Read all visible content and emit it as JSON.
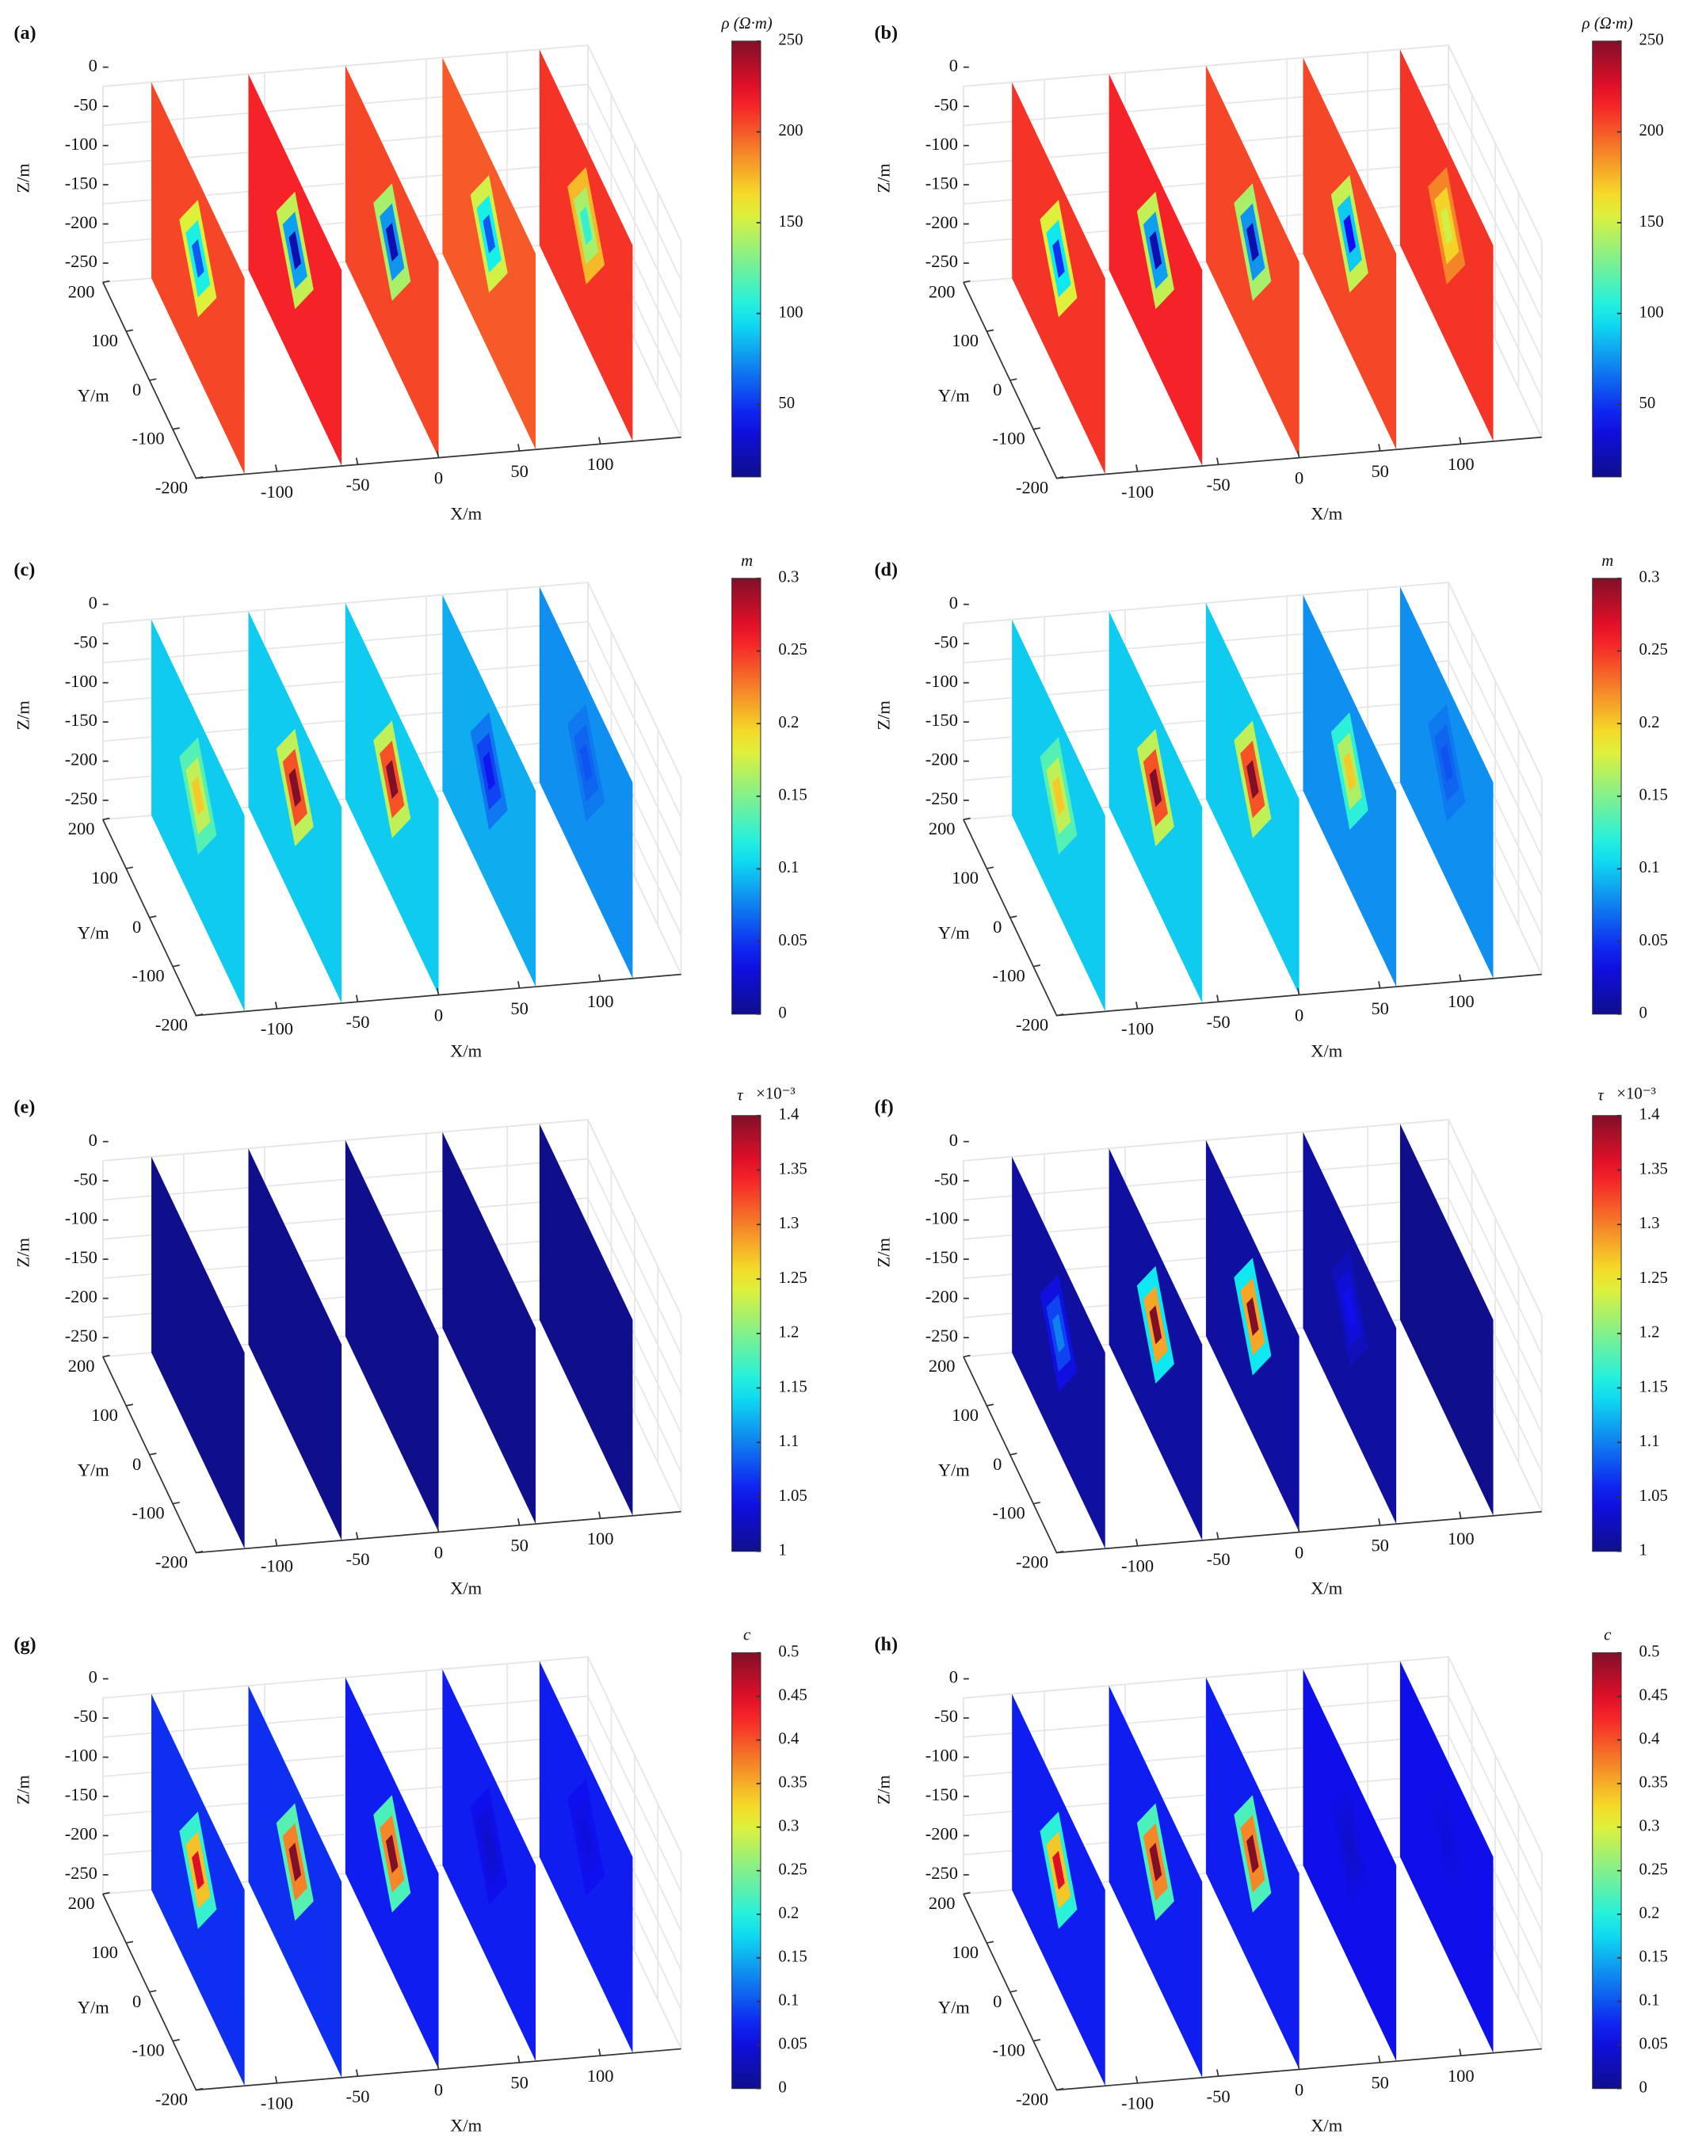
{
  "chart_data": [
    {
      "type": "slices",
      "panel": "(a)",
      "xlabel": "X/m",
      "ylabel": "Y/m",
      "zlabel": "Z/m",
      "xlim": [
        -150,
        150
      ],
      "ylim": [
        -200,
        200
      ],
      "zlim": [
        -250,
        0
      ],
      "xticks": [
        -100,
        -50,
        0,
        50,
        100
      ],
      "yticks": [
        200,
        100,
        0,
        -100,
        -200
      ],
      "zticks": [
        0,
        -50,
        -100,
        -150,
        -200,
        -250
      ],
      "grid": true,
      "colormap": "jet",
      "colorbar": {
        "title": "ρ (Ω·m)",
        "lim": [
          10,
          250
        ],
        "ticks": [
          50,
          100,
          150,
          200,
          250
        ]
      },
      "slices": {
        "x": [
          -120,
          -60,
          0,
          60,
          120
        ],
        "background": [
          205,
          215,
          205,
          200,
          210
        ],
        "anomaly": [
          60,
          20,
          20,
          60,
          110
        ]
      }
    },
    {
      "type": "slices",
      "panel": "(b)",
      "xlabel": "X/m",
      "ylabel": "Y/m",
      "zlabel": "Z/m",
      "xlim": [
        -150,
        150
      ],
      "ylim": [
        -200,
        200
      ],
      "zlim": [
        -250,
        0
      ],
      "xticks": [
        -100,
        -50,
        0,
        50,
        100
      ],
      "yticks": [
        200,
        100,
        0,
        -100,
        -200
      ],
      "zticks": [
        0,
        -50,
        -100,
        -150,
        -200,
        -250
      ],
      "grid": true,
      "colormap": "jet",
      "colorbar": {
        "title": "ρ (Ω·m)",
        "lim": [
          10,
          250
        ],
        "ticks": [
          50,
          100,
          150,
          200,
          250
        ]
      },
      "slices": {
        "x": [
          -120,
          -60,
          0,
          60,
          120
        ],
        "background": [
          210,
          215,
          205,
          205,
          210
        ],
        "anomaly": [
          50,
          20,
          20,
          40,
          150
        ]
      }
    },
    {
      "type": "slices",
      "panel": "(c)",
      "xlabel": "X/m",
      "ylabel": "Y/m",
      "zlabel": "Z/m",
      "xlim": [
        -150,
        150
      ],
      "ylim": [
        -200,
        200
      ],
      "zlim": [
        -250,
        0
      ],
      "xticks": [
        -100,
        -50,
        0,
        50,
        100
      ],
      "yticks": [
        200,
        100,
        0,
        -100,
        -200
      ],
      "zticks": [
        0,
        -50,
        -100,
        -150,
        -200,
        -250
      ],
      "grid": true,
      "colormap": "jet",
      "colorbar": {
        "title": "m",
        "lim": [
          0,
          0.3
        ],
        "ticks": [
          0,
          0.05,
          0.1,
          0.15,
          0.2,
          0.25,
          0.3
        ]
      },
      "slices": {
        "x": [
          -120,
          -60,
          0,
          60,
          120
        ],
        "background": [
          0.1,
          0.1,
          0.1,
          0.09,
          0.08
        ],
        "anomaly": [
          0.2,
          0.3,
          0.3,
          0.04,
          0.06
        ]
      }
    },
    {
      "type": "slices",
      "panel": "(d)",
      "xlabel": "X/m",
      "ylabel": "Y/m",
      "zlabel": "Z/m",
      "xlim": [
        -150,
        150
      ],
      "ylim": [
        -200,
        200
      ],
      "zlim": [
        -250,
        0
      ],
      "xticks": [
        -100,
        -50,
        0,
        50,
        100
      ],
      "yticks": [
        200,
        100,
        0,
        -100,
        -200
      ],
      "zticks": [
        0,
        -50,
        -100,
        -150,
        -200,
        -250
      ],
      "grid": true,
      "colormap": "jet",
      "colorbar": {
        "title": "m",
        "lim": [
          0,
          0.3
        ],
        "ticks": [
          0,
          0.05,
          0.1,
          0.15,
          0.2,
          0.25,
          0.3
        ]
      },
      "slices": {
        "x": [
          -120,
          -60,
          0,
          60,
          120
        ],
        "background": [
          0.1,
          0.1,
          0.1,
          0.08,
          0.08
        ],
        "anomaly": [
          0.2,
          0.3,
          0.3,
          0.2,
          0.06
        ]
      }
    },
    {
      "type": "slices",
      "panel": "(e)",
      "xlabel": "X/m",
      "ylabel": "Y/m",
      "zlabel": "Z/m",
      "xlim": [
        -150,
        150
      ],
      "ylim": [
        -200,
        200
      ],
      "zlim": [
        -250,
        0
      ],
      "xticks": [
        -100,
        -50,
        0,
        50,
        100
      ],
      "yticks": [
        200,
        100,
        0,
        -100,
        -200
      ],
      "zticks": [
        0,
        -50,
        -100,
        -150,
        -200,
        -250
      ],
      "grid": true,
      "colormap": "jet",
      "colorbar": {
        "title": "τ",
        "multiplier": "×10⁻³",
        "lim": [
          1,
          1.4
        ],
        "ticks": [
          1,
          1.05,
          1.1,
          1.15,
          1.2,
          1.25,
          1.3,
          1.35,
          1.4
        ]
      },
      "slices": {
        "x": [
          -120,
          -60,
          0,
          60,
          120
        ],
        "background": [
          1,
          1,
          1,
          1,
          1
        ],
        "anomaly": [
          1,
          1,
          1,
          1,
          1
        ]
      }
    },
    {
      "type": "slices",
      "panel": "(f)",
      "xlabel": "X/m",
      "ylabel": "Y/m",
      "zlabel": "Z/m",
      "xlim": [
        -150,
        150
      ],
      "ylim": [
        -200,
        200
      ],
      "zlim": [
        -250,
        0
      ],
      "xticks": [
        -100,
        -50,
        0,
        50,
        100
      ],
      "yticks": [
        200,
        100,
        0,
        -100,
        -200
      ],
      "zticks": [
        0,
        -50,
        -100,
        -150,
        -200,
        -250
      ],
      "grid": true,
      "colormap": "jet",
      "colorbar": {
        "title": "τ",
        "multiplier": "×10⁻³",
        "lim": [
          1,
          1.4
        ],
        "ticks": [
          1,
          1.05,
          1.1,
          1.15,
          1.2,
          1.25,
          1.3,
          1.35,
          1.4
        ]
      },
      "slices": {
        "x": [
          -120,
          -60,
          0,
          60,
          120
        ],
        "background": [
          1.01,
          1.01,
          1.01,
          1.01,
          1
        ],
        "anomaly": [
          1.1,
          1.4,
          1.4,
          1.05,
          1
        ]
      }
    },
    {
      "type": "slices",
      "panel": "(g)",
      "xlabel": "X/m",
      "ylabel": "Y/m",
      "zlabel": "Z/m",
      "xlim": [
        -150,
        150
      ],
      "ylim": [
        -200,
        200
      ],
      "zlim": [
        -250,
        0
      ],
      "xticks": [
        -100,
        -50,
        0,
        50,
        100
      ],
      "yticks": [
        200,
        100,
        0,
        -100,
        -200
      ],
      "zticks": [
        0,
        -50,
        -100,
        -150,
        -200,
        -250
      ],
      "grid": true,
      "colormap": "jet",
      "colorbar": {
        "title": "c",
        "lim": [
          0,
          0.5
        ],
        "ticks": [
          0,
          0.05,
          0.1,
          0.15,
          0.2,
          0.25,
          0.3,
          0.35,
          0.4,
          0.45,
          0.5
        ]
      },
      "slices": {
        "x": [
          -120,
          -60,
          0,
          60,
          120
        ],
        "background": [
          0.08,
          0.08,
          0.07,
          0.07,
          0.07
        ],
        "anomaly": [
          0.45,
          0.5,
          0.5,
          0.04,
          0.05
        ]
      }
    },
    {
      "type": "slices",
      "panel": "(h)",
      "xlabel": "X/m",
      "ylabel": "Y/m",
      "zlabel": "Z/m",
      "xlim": [
        -150,
        150
      ],
      "ylim": [
        -200,
        200
      ],
      "zlim": [
        -250,
        0
      ],
      "xticks": [
        -100,
        -50,
        0,
        50,
        100
      ],
      "yticks": [
        200,
        100,
        0,
        -100,
        -200
      ],
      "zticks": [
        0,
        -50,
        -100,
        -150,
        -200,
        -250
      ],
      "grid": true,
      "colormap": "jet",
      "colorbar": {
        "title": "c",
        "lim": [
          0,
          0.5
        ],
        "ticks": [
          0,
          0.05,
          0.1,
          0.15,
          0.2,
          0.25,
          0.3,
          0.35,
          0.4,
          0.45,
          0.5
        ]
      },
      "slices": {
        "x": [
          -120,
          -60,
          0,
          60,
          120
        ],
        "background": [
          0.07,
          0.07,
          0.07,
          0.06,
          0.06
        ],
        "anomaly": [
          0.45,
          0.5,
          0.5,
          0.04,
          0.05
        ]
      }
    }
  ]
}
